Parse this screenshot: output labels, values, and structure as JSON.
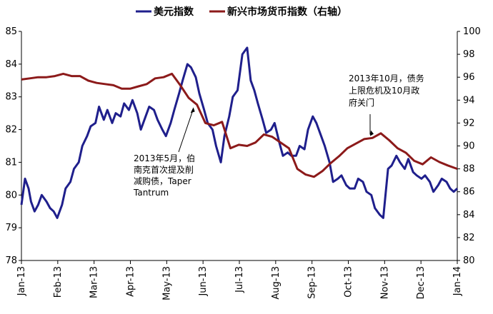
{
  "chart_data": {
    "type": "line",
    "title": "",
    "legend": {
      "placement": "top-center"
    },
    "x_tick_labels": [
      "Jan-13",
      "Feb-13",
      "Mar-13",
      "Apr-13",
      "May-13",
      "Jun-13",
      "Jul-13",
      "Aug-13",
      "Sep-13",
      "Oct-13",
      "Nov-13",
      "Dec-13",
      "Jan-14"
    ],
    "left_axis": {
      "ylim": [
        78,
        85
      ],
      "ticks": [
        "78",
        "79",
        "80",
        "81",
        "82",
        "83",
        "84",
        "85"
      ]
    },
    "right_axis": {
      "ylim": [
        80,
        100
      ],
      "ticks": [
        "80",
        "82",
        "84",
        "86",
        "88",
        "90",
        "92",
        "94",
        "96",
        "98",
        "100"
      ]
    },
    "series": [
      {
        "name": "美元指数",
        "axis": "left",
        "color": "#1f1f8c",
        "points": [
          [
            "2013-01-01",
            79.7
          ],
          [
            "2013-01-04",
            80.5
          ],
          [
            "2013-01-07",
            80.2
          ],
          [
            "2013-01-09",
            79.8
          ],
          [
            "2013-01-12",
            79.5
          ],
          [
            "2013-01-15",
            79.7
          ],
          [
            "2013-01-18",
            80.0
          ],
          [
            "2013-01-22",
            79.8
          ],
          [
            "2013-01-25",
            79.6
          ],
          [
            "2013-01-28",
            79.5
          ],
          [
            "2013-01-31",
            79.3
          ],
          [
            "2013-02-04",
            79.7
          ],
          [
            "2013-02-07",
            80.2
          ],
          [
            "2013-02-11",
            80.4
          ],
          [
            "2013-02-14",
            80.8
          ],
          [
            "2013-02-18",
            81.0
          ],
          [
            "2013-02-21",
            81.5
          ],
          [
            "2013-02-25",
            81.8
          ],
          [
            "2013-02-28",
            82.1
          ],
          [
            "2013-03-04",
            82.2
          ],
          [
            "2013-03-07",
            82.7
          ],
          [
            "2013-03-11",
            82.3
          ],
          [
            "2013-03-14",
            82.6
          ],
          [
            "2013-03-18",
            82.2
          ],
          [
            "2013-03-21",
            82.5
          ],
          [
            "2013-03-25",
            82.4
          ],
          [
            "2013-03-28",
            82.8
          ],
          [
            "2013-04-01",
            82.6
          ],
          [
            "2013-04-04",
            82.9
          ],
          [
            "2013-04-08",
            82.5
          ],
          [
            "2013-04-11",
            82.0
          ],
          [
            "2013-04-15",
            82.4
          ],
          [
            "2013-04-18",
            82.7
          ],
          [
            "2013-04-22",
            82.6
          ],
          [
            "2013-04-25",
            82.3
          ],
          [
            "2013-04-29",
            82.0
          ],
          [
            "2013-05-02",
            81.8
          ],
          [
            "2013-05-06",
            82.2
          ],
          [
            "2013-05-09",
            82.6
          ],
          [
            "2013-05-13",
            83.1
          ],
          [
            "2013-05-16",
            83.5
          ],
          [
            "2013-05-20",
            84.0
          ],
          [
            "2013-05-23",
            83.9
          ],
          [
            "2013-05-27",
            83.6
          ],
          [
            "2013-05-30",
            83.1
          ],
          [
            "2013-06-03",
            82.6
          ],
          [
            "2013-06-06",
            82.2
          ],
          [
            "2013-06-10",
            82.0
          ],
          [
            "2013-06-13",
            81.5
          ],
          [
            "2013-06-17",
            81.0
          ],
          [
            "2013-06-20",
            81.8
          ],
          [
            "2013-06-24",
            82.4
          ],
          [
            "2013-06-27",
            83.0
          ],
          [
            "2013-07-01",
            83.2
          ],
          [
            "2013-07-05",
            84.3
          ],
          [
            "2013-07-09",
            84.5
          ],
          [
            "2013-07-12",
            83.5
          ],
          [
            "2013-07-15",
            83.2
          ],
          [
            "2013-07-18",
            82.8
          ],
          [
            "2013-07-22",
            82.3
          ],
          [
            "2013-07-25",
            81.9
          ],
          [
            "2013-07-29",
            82.0
          ],
          [
            "2013-08-01",
            82.2
          ],
          [
            "2013-08-05",
            81.6
          ],
          [
            "2013-08-08",
            81.2
          ],
          [
            "2013-08-12",
            81.3
          ],
          [
            "2013-08-15",
            81.2
          ],
          [
            "2013-08-19",
            81.2
          ],
          [
            "2013-08-22",
            81.5
          ],
          [
            "2013-08-26",
            81.4
          ],
          [
            "2013-08-29",
            82.0
          ],
          [
            "2013-09-02",
            82.4
          ],
          [
            "2013-09-05",
            82.2
          ],
          [
            "2013-09-09",
            81.8
          ],
          [
            "2013-09-12",
            81.5
          ],
          [
            "2013-09-16",
            81.0
          ],
          [
            "2013-09-19",
            80.4
          ],
          [
            "2013-09-23",
            80.5
          ],
          [
            "2013-09-26",
            80.6
          ],
          [
            "2013-09-30",
            80.3
          ],
          [
            "2013-10-03",
            80.2
          ],
          [
            "2013-10-07",
            80.2
          ],
          [
            "2013-10-10",
            80.5
          ],
          [
            "2013-10-14",
            80.4
          ],
          [
            "2013-10-17",
            80.1
          ],
          [
            "2013-10-21",
            80.0
          ],
          [
            "2013-10-24",
            79.6
          ],
          [
            "2013-10-28",
            79.4
          ],
          [
            "2013-10-31",
            79.3
          ],
          [
            "2013-11-04",
            80.8
          ],
          [
            "2013-11-07",
            80.9
          ],
          [
            "2013-11-11",
            81.2
          ],
          [
            "2013-11-14",
            81.0
          ],
          [
            "2013-11-18",
            80.8
          ],
          [
            "2013-11-21",
            81.1
          ],
          [
            "2013-11-25",
            80.7
          ],
          [
            "2013-11-28",
            80.6
          ],
          [
            "2013-12-02",
            80.5
          ],
          [
            "2013-12-05",
            80.6
          ],
          [
            "2013-12-09",
            80.4
          ],
          [
            "2013-12-12",
            80.1
          ],
          [
            "2013-12-16",
            80.3
          ],
          [
            "2013-12-19",
            80.5
          ],
          [
            "2013-12-23",
            80.4
          ],
          [
            "2013-12-26",
            80.2
          ],
          [
            "2013-12-29",
            80.1
          ],
          [
            "2014-01-01",
            80.2
          ]
        ]
      },
      {
        "name": "新兴市场货币指数（右轴）",
        "axis": "right",
        "color": "#8c1a1a",
        "points": [
          [
            "2013-01-01",
            95.8
          ],
          [
            "2013-01-08",
            95.9
          ],
          [
            "2013-01-15",
            96.0
          ],
          [
            "2013-01-22",
            96.0
          ],
          [
            "2013-01-29",
            96.1
          ],
          [
            "2013-02-05",
            96.3
          ],
          [
            "2013-02-12",
            96.1
          ],
          [
            "2013-02-19",
            96.1
          ],
          [
            "2013-02-26",
            95.7
          ],
          [
            "2013-03-05",
            95.5
          ],
          [
            "2013-03-12",
            95.4
          ],
          [
            "2013-03-19",
            95.3
          ],
          [
            "2013-03-26",
            95.0
          ],
          [
            "2013-04-02",
            95.0
          ],
          [
            "2013-04-09",
            95.2
          ],
          [
            "2013-04-16",
            95.4
          ],
          [
            "2013-04-23",
            95.9
          ],
          [
            "2013-04-30",
            96.0
          ],
          [
            "2013-05-07",
            96.3
          ],
          [
            "2013-05-14",
            95.3
          ],
          [
            "2013-05-21",
            94.2
          ],
          [
            "2013-05-28",
            93.6
          ],
          [
            "2013-06-04",
            92.0
          ],
          [
            "2013-06-11",
            91.8
          ],
          [
            "2013-06-18",
            92.1
          ],
          [
            "2013-06-25",
            89.8
          ],
          [
            "2013-07-02",
            90.1
          ],
          [
            "2013-07-09",
            90.0
          ],
          [
            "2013-07-16",
            90.3
          ],
          [
            "2013-07-23",
            91.0
          ],
          [
            "2013-07-30",
            90.8
          ],
          [
            "2013-08-06",
            90.3
          ],
          [
            "2013-08-13",
            89.8
          ],
          [
            "2013-08-20",
            88.0
          ],
          [
            "2013-08-27",
            87.5
          ],
          [
            "2013-09-03",
            87.3
          ],
          [
            "2013-09-10",
            87.8
          ],
          [
            "2013-09-17",
            88.5
          ],
          [
            "2013-09-24",
            89.1
          ],
          [
            "2013-10-01",
            89.8
          ],
          [
            "2013-10-08",
            90.2
          ],
          [
            "2013-10-15",
            90.6
          ],
          [
            "2013-10-22",
            90.7
          ],
          [
            "2013-10-29",
            91.1
          ],
          [
            "2013-11-05",
            90.5
          ],
          [
            "2013-11-12",
            89.8
          ],
          [
            "2013-11-19",
            89.4
          ],
          [
            "2013-11-26",
            88.7
          ],
          [
            "2013-12-03",
            88.4
          ],
          [
            "2013-12-10",
            89.0
          ],
          [
            "2013-12-17",
            88.6
          ],
          [
            "2013-12-24",
            88.3
          ],
          [
            "2014-01-01",
            88.0
          ]
        ]
      }
    ],
    "annotations": [
      {
        "lines": [
          "2013年5月，伯",
          "南克首次提及削",
          "减购债，Taper",
          "Tantrum"
        ],
        "arrow_to": [
          "2013-05-25",
          93.5
        ]
      },
      {
        "lines": [
          "2013年10月，债务",
          "上限危机及10月政",
          "府关门"
        ],
        "arrow_to": [
          "2013-10-20",
          90.8
        ]
      }
    ]
  }
}
